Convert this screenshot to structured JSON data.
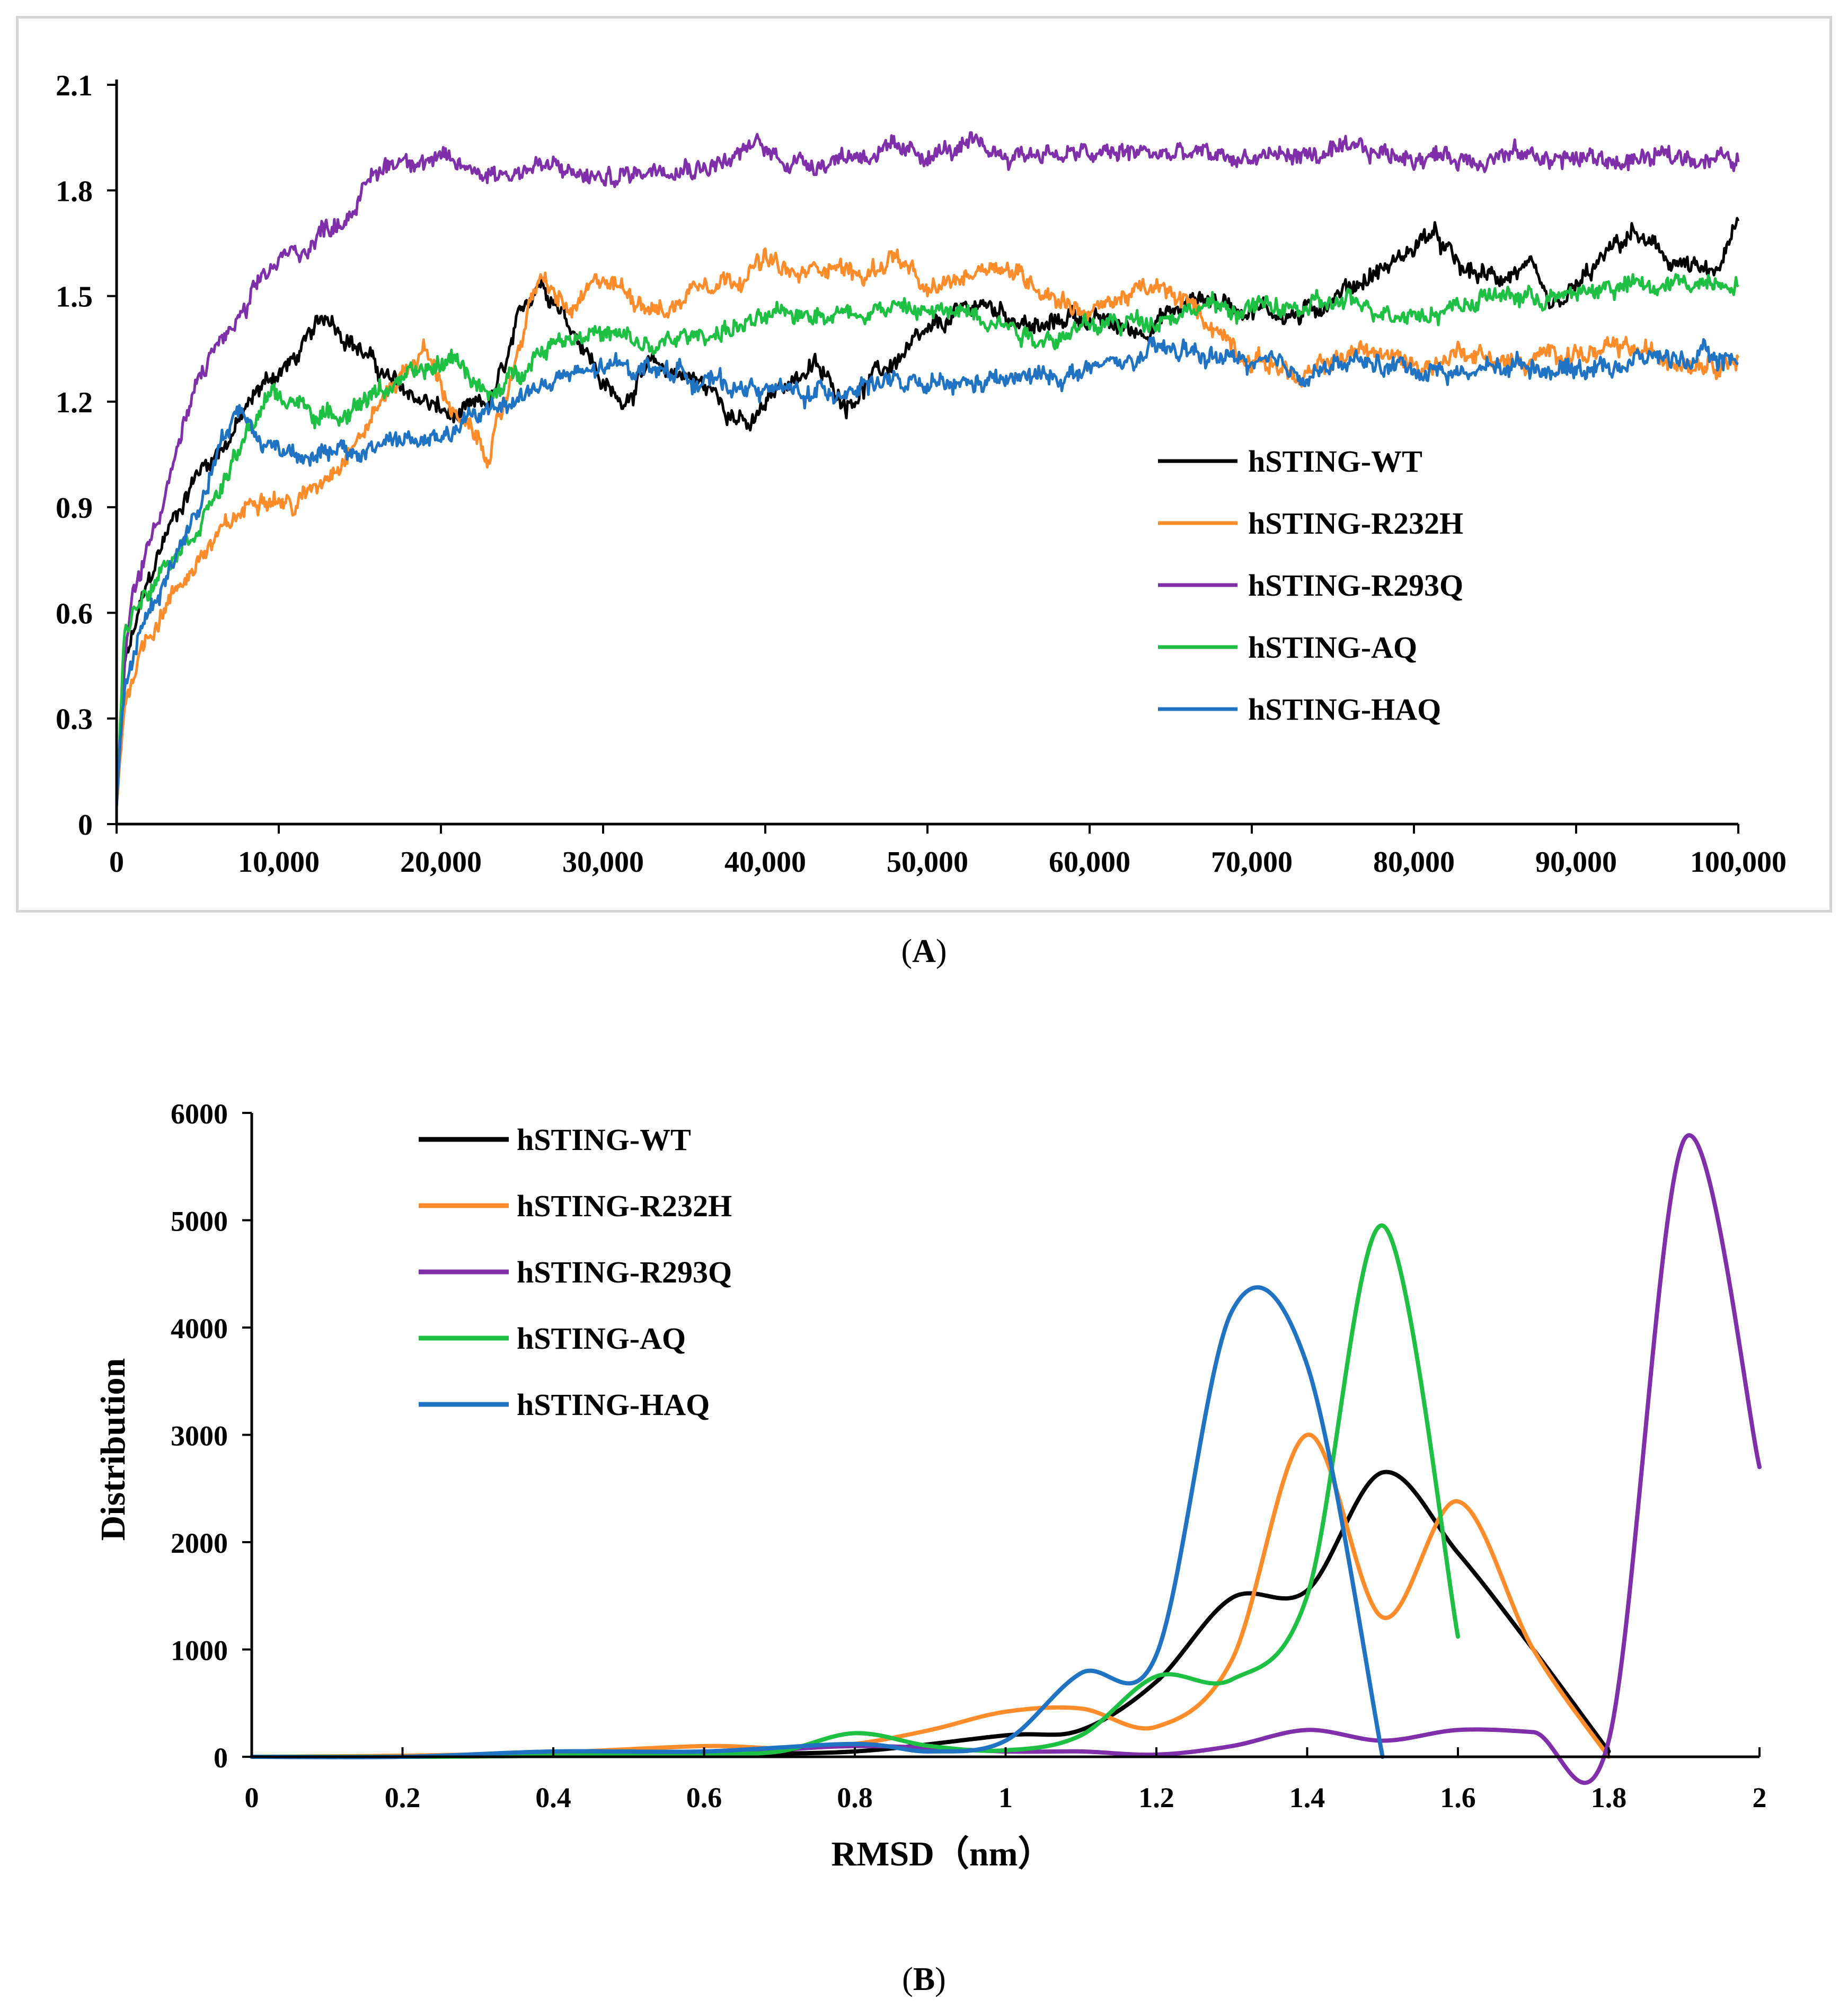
{
  "panels": {
    "a": {
      "caption_open": "(",
      "caption_letter": "A",
      "caption_close": ")"
    },
    "b": {
      "caption_open": "(",
      "caption_letter": "B",
      "caption_close": ")"
    }
  },
  "chart_data": [
    {
      "type": "line",
      "title": "",
      "xlabel": "",
      "ylabel": "",
      "xlim": [
        0,
        100000
      ],
      "ylim": [
        0,
        2.1
      ],
      "x_ticks": [
        0,
        10000,
        20000,
        30000,
        40000,
        50000,
        60000,
        70000,
        80000,
        90000,
        100000
      ],
      "x_tick_labels": [
        "0",
        "10,000",
        "20,000",
        "30,000",
        "40,000",
        "50,000",
        "60,000",
        "70,000",
        "80,000",
        "90,000",
        "100,000"
      ],
      "y_ticks": [
        0,
        0.3,
        0.6,
        0.9,
        1.2,
        1.5,
        1.8,
        2.1
      ],
      "y_tick_labels": [
        "0",
        "0.3",
        "0.6",
        "0.9",
        "1.2",
        "1.5",
        "1.8",
        "2.1"
      ],
      "grid": false,
      "legend": "center-right",
      "series": [
        {
          "name": "hSTING-WT",
          "color": "#000000",
          "x": [
            0,
            500,
            1500,
            3000,
            5000,
            7000,
            9000,
            11000,
            13000,
            15000,
            17000,
            19000,
            21000,
            23000,
            24000,
            25000,
            26000,
            27000,
            28000,
            29000,
            30000,
            31000,
            33000,
            35000,
            37000,
            39000,
            41000,
            43000,
            45000,
            47000,
            49000,
            51000,
            53000,
            55000,
            57000,
            59000,
            61000,
            63000,
            65000,
            67000,
            69000,
            71000,
            73000,
            75000,
            77000,
            79000,
            81000,
            83000,
            85000,
            87000,
            88500,
            90000,
            92000,
            93500,
            95000,
            97000,
            98500,
            100000
          ],
          "y": [
            0.05,
            0.45,
            0.62,
            0.82,
            1.0,
            1.1,
            1.25,
            1.32,
            1.45,
            1.35,
            1.25,
            1.2,
            1.15,
            1.2,
            1.3,
            1.45,
            1.55,
            1.5,
            1.42,
            1.35,
            1.25,
            1.2,
            1.3,
            1.28,
            1.22,
            1.12,
            1.25,
            1.3,
            1.2,
            1.28,
            1.35,
            1.42,
            1.48,
            1.45,
            1.4,
            1.45,
            1.42,
            1.4,
            1.45,
            1.5,
            1.47,
            1.46,
            1.44,
            1.5,
            1.55,
            1.6,
            1.68,
            1.57,
            1.55,
            1.58,
            1.45,
            1.52,
            1.62,
            1.68,
            1.62,
            1.58,
            1.55,
            1.7
          ]
        },
        {
          "name": "hSTING-R232H",
          "color": "#ff8c2a",
          "x": [
            0,
            500,
            1500,
            3000,
            5000,
            7000,
            9000,
            11000,
            13000,
            15000,
            17000,
            19000,
            21000,
            23000,
            24000,
            25000,
            26000,
            28000,
            30000,
            32000,
            34000,
            36000,
            38000,
            40000,
            42000,
            44000,
            46000,
            48000,
            50000,
            52000,
            54000,
            56000,
            58000,
            60000,
            62000,
            64000,
            66000,
            68000,
            70000,
            72000,
            73000,
            75000,
            77000,
            79000,
            81000,
            83000,
            85000,
            87000,
            89000,
            91000,
            93000,
            95000,
            97000,
            100000
          ],
          "y": [
            0.05,
            0.35,
            0.5,
            0.62,
            0.75,
            0.85,
            0.95,
            0.9,
            1.0,
            1.1,
            1.25,
            1.35,
            1.15,
            1.05,
            1.2,
            1.4,
            1.55,
            1.45,
            1.55,
            1.5,
            1.45,
            1.55,
            1.55,
            1.6,
            1.55,
            1.6,
            1.55,
            1.62,
            1.5,
            1.55,
            1.6,
            1.55,
            1.5,
            1.45,
            1.5,
            1.52,
            1.48,
            1.4,
            1.32,
            1.3,
            1.25,
            1.32,
            1.35,
            1.32,
            1.3,
            1.35,
            1.32,
            1.3,
            1.35,
            1.33,
            1.35,
            1.33,
            1.32,
            1.32
          ]
        },
        {
          "name": "hSTING-R293Q",
          "color": "#7f2faa",
          "x": [
            0,
            500,
            1000,
            2000,
            3000,
            4000,
            5000,
            6000,
            7000,
            8000,
            9000,
            10000,
            11000,
            12000,
            13000,
            14000,
            15000,
            16000,
            17000,
            18000,
            20000,
            22000,
            24000,
            26000,
            28000,
            30000,
            32000,
            34000,
            36000,
            38000,
            39500,
            41000,
            43000,
            45000,
            47000,
            49000,
            51000,
            53000,
            55000,
            57000,
            59000,
            61000,
            63000,
            65000,
            67000,
            69000,
            71000,
            73000,
            75000,
            77000,
            79000,
            81000,
            83000,
            85000,
            87000,
            89000,
            91000,
            93000,
            95000,
            97000,
            99000,
            100000
          ],
          "y": [
            0.05,
            0.45,
            0.65,
            0.8,
            0.95,
            1.1,
            1.25,
            1.35,
            1.4,
            1.45,
            1.55,
            1.6,
            1.62,
            1.65,
            1.7,
            1.72,
            1.78,
            1.85,
            1.88,
            1.9,
            1.88,
            1.86,
            1.85,
            1.87,
            1.85,
            1.83,
            1.85,
            1.88,
            1.87,
            1.89,
            1.93,
            1.89,
            1.88,
            1.9,
            1.91,
            1.9,
            1.91,
            1.92,
            1.9,
            1.91,
            1.9,
            1.9,
            1.91,
            1.9,
            1.9,
            1.89,
            1.9,
            1.9,
            1.9,
            1.91,
            1.9,
            1.9,
            1.89,
            1.9,
            1.9,
            1.89,
            1.89,
            1.88,
            1.89,
            1.9,
            1.89,
            1.88
          ]
        },
        {
          "name": "hSTING-AQ",
          "color": "#1ec043",
          "x": [
            0,
            500,
            1500,
            3000,
            5000,
            7000,
            8500,
            9500,
            11000,
            13000,
            15000,
            17000,
            19000,
            21000,
            23000,
            25000,
            27000,
            29000,
            31000,
            33000,
            35000,
            37000,
            39000,
            41000,
            43000,
            45000,
            47000,
            49000,
            51000,
            53000,
            55000,
            57000,
            59000,
            61000,
            63000,
            65000,
            67000,
            69000,
            71000,
            73000,
            75000,
            77000,
            79000,
            81000,
            83000,
            85000,
            87000,
            89000,
            91000,
            93000,
            95000,
            97000,
            100000
          ],
          "y": [
            0.05,
            0.55,
            0.65,
            0.75,
            0.85,
            1.0,
            1.15,
            1.22,
            1.2,
            1.15,
            1.2,
            1.25,
            1.28,
            1.33,
            1.2,
            1.3,
            1.38,
            1.4,
            1.38,
            1.35,
            1.38,
            1.4,
            1.42,
            1.44,
            1.46,
            1.45,
            1.47,
            1.46,
            1.45,
            1.46,
            1.42,
            1.38,
            1.4,
            1.42,
            1.43,
            1.45,
            1.47,
            1.46,
            1.47,
            1.46,
            1.48,
            1.47,
            1.46,
            1.45,
            1.48,
            1.5,
            1.5,
            1.49,
            1.52,
            1.53,
            1.52,
            1.54,
            1.55
          ]
        },
        {
          "name": "hSTING-HAQ",
          "color": "#1f73c2",
          "x": [
            0,
            500,
            1500,
            3000,
            5000,
            6500,
            7500,
            9000,
            11000,
            13000,
            15000,
            17000,
            19000,
            21000,
            23000,
            25000,
            27000,
            29000,
            31000,
            33000,
            35000,
            37000,
            39000,
            41000,
            43000,
            45000,
            47000,
            49000,
            51000,
            53000,
            55000,
            57000,
            59000,
            61000,
            63000,
            65000,
            67000,
            69000,
            71000,
            73000,
            75000,
            77000,
            79000,
            81000,
            83000,
            85000,
            87000,
            89000,
            91000,
            93000,
            95000,
            97000,
            100000
          ],
          "y": [
            0.05,
            0.4,
            0.55,
            0.7,
            0.9,
            1.1,
            1.18,
            1.08,
            1.06,
            1.05,
            1.05,
            1.1,
            1.08,
            1.12,
            1.18,
            1.22,
            1.26,
            1.28,
            1.3,
            1.3,
            1.28,
            1.25,
            1.24,
            1.23,
            1.22,
            1.24,
            1.26,
            1.24,
            1.24,
            1.25,
            1.26,
            1.27,
            1.28,
            1.3,
            1.32,
            1.35,
            1.33,
            1.32,
            1.3,
            1.28,
            1.3,
            1.31,
            1.3,
            1.29,
            1.28,
            1.3,
            1.31,
            1.29,
            1.3,
            1.31,
            1.33,
            1.32,
            1.32
          ]
        }
      ]
    },
    {
      "type": "line",
      "title": "",
      "xlabel": "RMSD（nm）",
      "ylabel": "Distribution",
      "xlim": [
        0,
        2
      ],
      "ylim": [
        0,
        6000
      ],
      "x_ticks": [
        0,
        0.2,
        0.4,
        0.6,
        0.8,
        1,
        1.2,
        1.4,
        1.6,
        1.8,
        2
      ],
      "x_tick_labels": [
        "0",
        "0.2",
        "0.4",
        "0.6",
        "0.8",
        "1",
        "1.2",
        "1.4",
        "1.6",
        "1.8",
        "2"
      ],
      "y_ticks": [
        0,
        1000,
        2000,
        3000,
        4000,
        5000,
        6000
      ],
      "y_tick_labels": [
        "0",
        "1000",
        "2000",
        "3000",
        "4000",
        "5000",
        "6000"
      ],
      "grid": false,
      "legend": "top-left",
      "series": [
        {
          "name": "hSTING-WT",
          "color": "#000000",
          "x": [
            0,
            0.2,
            0.4,
            0.6,
            0.8,
            1.0,
            1.1,
            1.2,
            1.3,
            1.4,
            1.5,
            1.6,
            1.7,
            1.8
          ],
          "y": [
            0,
            0,
            20,
            30,
            50,
            200,
            250,
            700,
            1480,
            1550,
            2650,
            1900,
            1000,
            50
          ]
        },
        {
          "name": "hSTING-R232H",
          "color": "#ff8c2a",
          "x": [
            0,
            0.2,
            0.4,
            0.6,
            0.7,
            0.8,
            0.9,
            1.0,
            1.1,
            1.2,
            1.3,
            1.4,
            1.5,
            1.6,
            1.7,
            1.8
          ],
          "y": [
            0,
            10,
            40,
            100,
            80,
            120,
            250,
            420,
            450,
            280,
            900,
            3000,
            1300,
            2380,
            1000,
            0
          ]
        },
        {
          "name": "hSTING-R293Q",
          "color": "#7f2faa",
          "x": [
            0,
            0.2,
            0.4,
            0.6,
            0.8,
            1.0,
            1.1,
            1.2,
            1.3,
            1.4,
            1.5,
            1.6,
            1.7,
            1.8,
            1.9,
            2.0
          ],
          "y": [
            0,
            0,
            10,
            20,
            100,
            50,
            50,
            20,
            100,
            250,
            150,
            250,
            230,
            150,
            5750,
            2700
          ]
        },
        {
          "name": "hSTING-AQ",
          "color": "#1ec043",
          "x": [
            0,
            0.2,
            0.4,
            0.6,
            0.7,
            0.8,
            0.9,
            1.0,
            1.1,
            1.2,
            1.3,
            1.4,
            1.5,
            1.6
          ],
          "y": [
            0,
            0,
            10,
            30,
            50,
            220,
            100,
            60,
            200,
            750,
            720,
            1500,
            4950,
            1120
          ]
        },
        {
          "name": "hSTING-HAQ",
          "color": "#1f73c2",
          "x": [
            0,
            0.2,
            0.4,
            0.6,
            0.8,
            0.9,
            1.0,
            1.1,
            1.2,
            1.3,
            1.4,
            1.5
          ],
          "y": [
            0,
            0,
            50,
            50,
            120,
            50,
            150,
            780,
            950,
            4150,
            3650,
            0
          ]
        }
      ]
    }
  ]
}
